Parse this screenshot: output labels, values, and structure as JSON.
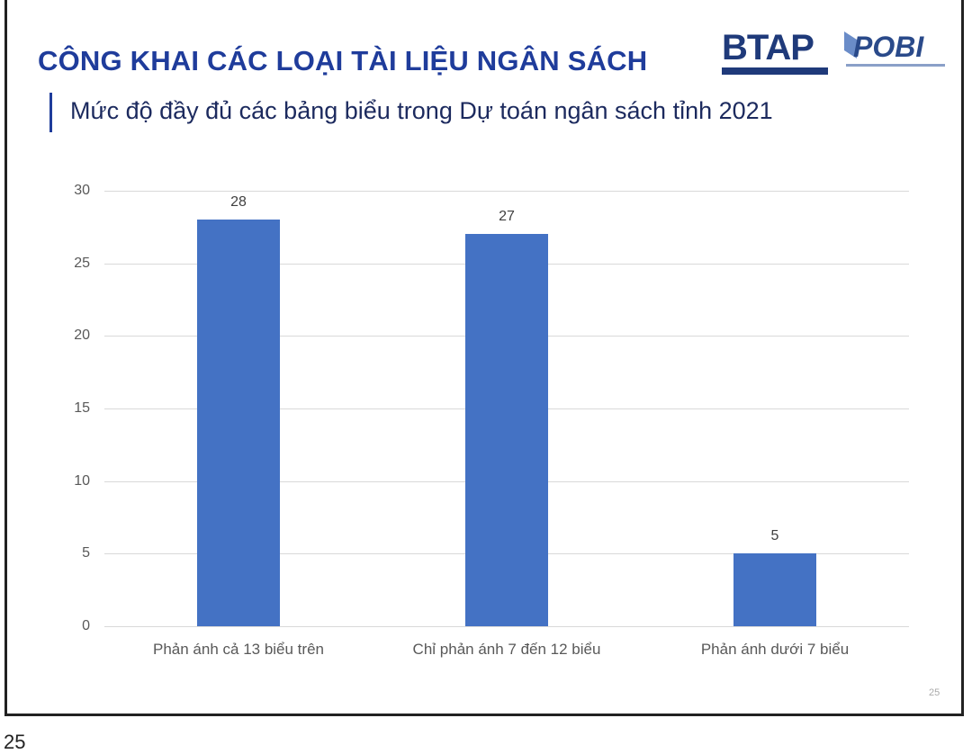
{
  "slide": {
    "title": "CÔNG KHAI CÁC LOẠI TÀI LIỆU NGÂN SÁCH",
    "subtitle": "Mức độ đầy đủ các bảng biểu trong Dự toán ngân sách tỉnh 2021",
    "logos": {
      "left": "BTAP",
      "right": "POBI"
    },
    "slide_number": "25",
    "page_number": "25"
  },
  "chart_data": {
    "type": "bar",
    "title": "Mức độ đầy đủ các bảng biểu trong Dự toán ngân sách tỉnh 2021",
    "categories": [
      "Phản ánh cả 13 biểu trên",
      "Chỉ phản ánh 7 đến 12 biểu",
      "Phản ánh dưới 7 biểu"
    ],
    "values": [
      28,
      27,
      5
    ],
    "xlabel": "",
    "ylabel": "",
    "ylim": [
      0,
      30
    ],
    "yticks": [
      0,
      5,
      10,
      15,
      20,
      25,
      30
    ],
    "grid": true,
    "legend": "none",
    "data_labels": [
      "28",
      "27",
      "5"
    ],
    "bar_color": "#4472c4"
  }
}
